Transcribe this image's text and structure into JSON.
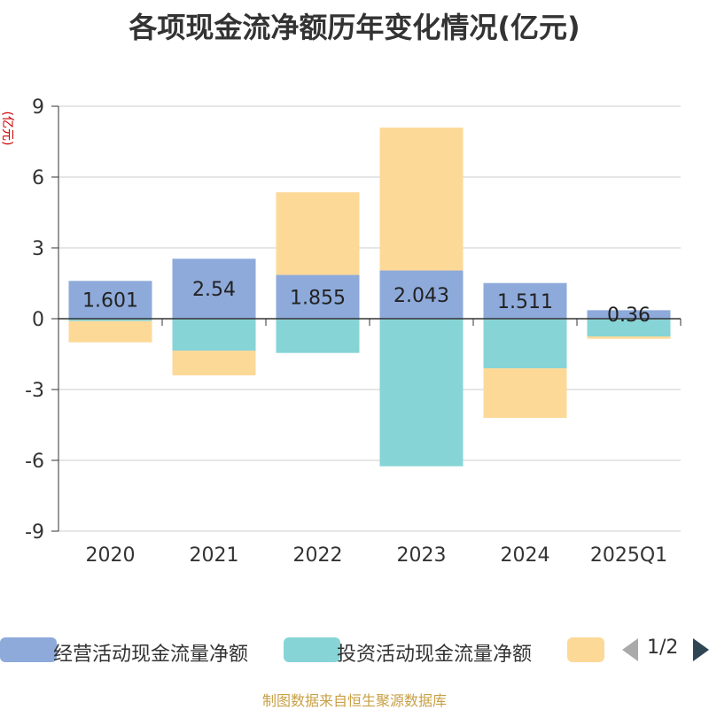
{
  "title": "各项现金流净额历年变化情况(亿元)",
  "footer": "制图数据来自恒生聚源数据库",
  "pager": "1/2",
  "chart_data": {
    "type": "bar",
    "stacked": true,
    "title": "各项现金流净额历年变化情况(亿元)",
    "ylabel": "(亿元)",
    "xlabel": "",
    "ylim": [
      -9,
      9
    ],
    "yticks": [
      9,
      6,
      3,
      0,
      -3,
      -6,
      -9
    ],
    "categories": [
      "2020",
      "2021",
      "2022",
      "2023",
      "2024",
      "2025Q1"
    ],
    "grid": true,
    "legend_position": "bottom",
    "series": [
      {
        "name": "经营活动现金流量净额",
        "color": "#8eaadb",
        "values": [
          1.601,
          2.54,
          1.855,
          2.043,
          1.511,
          0.36
        ],
        "labels": [
          "1.601",
          "2.54",
          "1.855",
          "2.043",
          "1.511",
          "0.36"
        ]
      },
      {
        "name": "投资活动现金流量净额",
        "color": "#86d4d6",
        "values": [
          -0.1,
          -1.35,
          -1.45,
          -6.25,
          -2.1,
          -0.75
        ]
      },
      {
        "name": "",
        "color": "#fdd998",
        "values": [
          -0.9,
          -1.05,
          3.5,
          6.05,
          -2.1,
          -0.1
        ]
      }
    ]
  }
}
